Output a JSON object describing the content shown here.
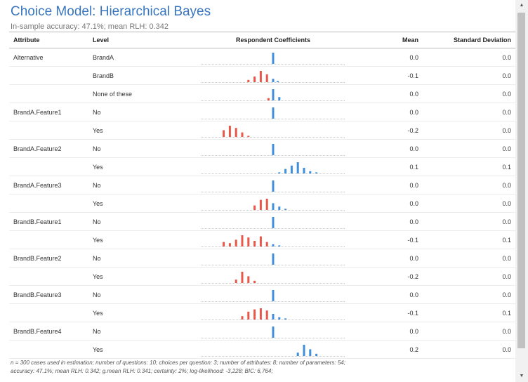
{
  "title": "Choice Model: Hierarchical Bayes",
  "subtitle": "In-sample accuracy: 47.1%; mean RLH: 0.342",
  "columns": {
    "attribute": "Attribute",
    "level": "Level",
    "coefficients": "Respondent Coefficients",
    "mean": "Mean",
    "sd": "Standard Deviation"
  },
  "colors": {
    "negative": "#e8574a",
    "positive": "#3f8fdc",
    "title": "#3a76bf"
  },
  "rows": [
    {
      "attribute": "Alternative",
      "level": "BrandA",
      "mean": "0.0",
      "sd": "0.0",
      "hist": [
        {
          "v": 0.0,
          "f": 1.0
        }
      ]
    },
    {
      "attribute": "",
      "level": "BrandB",
      "mean": "-0.1",
      "sd": "0.0",
      "hist": [
        {
          "v": -0.16,
          "f": 0.2
        },
        {
          "v": -0.12,
          "f": 0.5
        },
        {
          "v": -0.08,
          "f": 1.0
        },
        {
          "v": -0.04,
          "f": 0.7
        },
        {
          "v": 0.0,
          "f": 0.3
        },
        {
          "v": 0.03,
          "f": 0.1
        }
      ]
    },
    {
      "attribute": "",
      "level": "None of these",
      "mean": "0.0",
      "sd": "0.0",
      "hist": [
        {
          "v": -0.03,
          "f": 0.2
        },
        {
          "v": 0.0,
          "f": 1.0
        },
        {
          "v": 0.04,
          "f": 0.3
        }
      ]
    },
    {
      "attribute": "BrandA.Feature1",
      "level": "No",
      "mean": "0.0",
      "sd": "0.0",
      "hist": [
        {
          "v": 0.0,
          "f": 1.0
        }
      ]
    },
    {
      "attribute": "",
      "level": "Yes",
      "mean": "-0.2",
      "sd": "0.0",
      "hist": [
        {
          "v": -0.32,
          "f": 0.6
        },
        {
          "v": -0.28,
          "f": 1.0
        },
        {
          "v": -0.24,
          "f": 0.8
        },
        {
          "v": -0.2,
          "f": 0.4
        },
        {
          "v": -0.16,
          "f": 0.1
        }
      ]
    },
    {
      "attribute": "BrandA.Feature2",
      "level": "No",
      "mean": "0.0",
      "sd": "0.0",
      "hist": [
        {
          "v": 0.0,
          "f": 1.0
        }
      ]
    },
    {
      "attribute": "",
      "level": "Yes",
      "mean": "0.1",
      "sd": "0.1",
      "hist": [
        {
          "v": 0.04,
          "f": 0.1
        },
        {
          "v": 0.08,
          "f": 0.4
        },
        {
          "v": 0.12,
          "f": 0.7
        },
        {
          "v": 0.16,
          "f": 1.0
        },
        {
          "v": 0.2,
          "f": 0.5
        },
        {
          "v": 0.24,
          "f": 0.2
        },
        {
          "v": 0.28,
          "f": 0.1
        }
      ]
    },
    {
      "attribute": "BrandA.Feature3",
      "level": "No",
      "mean": "0.0",
      "sd": "0.0",
      "hist": [
        {
          "v": 0.0,
          "f": 1.0
        }
      ]
    },
    {
      "attribute": "",
      "level": "Yes",
      "mean": "0.0",
      "sd": "0.0",
      "hist": [
        {
          "v": -0.12,
          "f": 0.4
        },
        {
          "v": -0.08,
          "f": 0.9
        },
        {
          "v": -0.04,
          "f": 1.0
        },
        {
          "v": 0.0,
          "f": 0.6
        },
        {
          "v": 0.04,
          "f": 0.3
        },
        {
          "v": 0.08,
          "f": 0.1
        }
      ]
    },
    {
      "attribute": "BrandB.Feature1",
      "level": "No",
      "mean": "0.0",
      "sd": "0.0",
      "hist": [
        {
          "v": 0.0,
          "f": 1.0
        }
      ]
    },
    {
      "attribute": "",
      "level": "Yes",
      "mean": "-0.1",
      "sd": "0.1",
      "hist": [
        {
          "v": -0.32,
          "f": 0.4
        },
        {
          "v": -0.28,
          "f": 0.3
        },
        {
          "v": -0.24,
          "f": 0.6
        },
        {
          "v": -0.2,
          "f": 1.0
        },
        {
          "v": -0.16,
          "f": 0.8
        },
        {
          "v": -0.12,
          "f": 0.5
        },
        {
          "v": -0.08,
          "f": 0.9
        },
        {
          "v": -0.04,
          "f": 0.4
        },
        {
          "v": 0.0,
          "f": 0.2
        },
        {
          "v": 0.04,
          "f": 0.1
        }
      ]
    },
    {
      "attribute": "BrandB.Feature2",
      "level": "No",
      "mean": "0.0",
      "sd": "0.0",
      "hist": [
        {
          "v": 0.0,
          "f": 1.0
        }
      ]
    },
    {
      "attribute": "",
      "level": "Yes",
      "mean": "-0.2",
      "sd": "0.0",
      "hist": [
        {
          "v": -0.24,
          "f": 0.3
        },
        {
          "v": -0.2,
          "f": 1.0
        },
        {
          "v": -0.16,
          "f": 0.6
        },
        {
          "v": -0.12,
          "f": 0.2
        }
      ]
    },
    {
      "attribute": "BrandB.Feature3",
      "level": "No",
      "mean": "0.0",
      "sd": "0.0",
      "hist": [
        {
          "v": 0.0,
          "f": 1.0
        }
      ]
    },
    {
      "attribute": "",
      "level": "Yes",
      "mean": "-0.1",
      "sd": "0.1",
      "hist": [
        {
          "v": -0.2,
          "f": 0.3
        },
        {
          "v": -0.16,
          "f": 0.7
        },
        {
          "v": -0.12,
          "f": 0.9
        },
        {
          "v": -0.08,
          "f": 1.0
        },
        {
          "v": -0.04,
          "f": 0.8
        },
        {
          "v": 0.0,
          "f": 0.5
        },
        {
          "v": 0.04,
          "f": 0.2
        },
        {
          "v": 0.08,
          "f": 0.1
        }
      ]
    },
    {
      "attribute": "BrandB.Feature4",
      "level": "No",
      "mean": "0.0",
      "sd": "0.0",
      "hist": [
        {
          "v": 0.0,
          "f": 1.0
        }
      ]
    },
    {
      "attribute": "",
      "level": "Yes",
      "mean": "0.2",
      "sd": "0.0",
      "hist": [
        {
          "v": 0.16,
          "f": 0.3
        },
        {
          "v": 0.2,
          "f": 1.0
        },
        {
          "v": 0.24,
          "f": 0.6
        },
        {
          "v": 0.28,
          "f": 0.2
        }
      ]
    }
  ],
  "footer": {
    "line1": "n = 300 cases used in estimation; number of questions: 10; choices per question: 3; number of attributes: 8; number of parameters: 54;",
    "line2": "accuracy: 47.1%; mean RLH: 0.342; g.mean RLH: 0.341; certainty: 2%; log-likelihood: -3,228; BIC: 6,764;"
  },
  "scrollbar": {
    "up_icon": "▲",
    "down_icon": "▼"
  }
}
